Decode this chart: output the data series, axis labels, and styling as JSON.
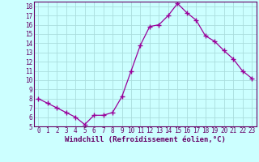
{
  "x": [
    0,
    1,
    2,
    3,
    4,
    5,
    6,
    7,
    8,
    9,
    10,
    11,
    12,
    13,
    14,
    15,
    16,
    17,
    18,
    19,
    20,
    21,
    22,
    23
  ],
  "y": [
    8.0,
    7.5,
    7.0,
    6.5,
    6.0,
    5.2,
    6.2,
    6.2,
    6.5,
    8.2,
    11.0,
    13.8,
    15.8,
    16.0,
    17.0,
    18.3,
    17.3,
    16.5,
    14.8,
    14.2,
    13.2,
    12.3,
    11.0,
    10.2
  ],
  "line_color": "#990099",
  "marker": "+",
  "bg_color": "#ccffff",
  "grid_color": "#aadddd",
  "xlabel": "Windchill (Refroidissement éolien,°C)",
  "ylim": [
    5,
    18.5
  ],
  "xlim": [
    -0.5,
    23.5
  ],
  "yticks": [
    5,
    6,
    7,
    8,
    9,
    10,
    11,
    12,
    13,
    14,
    15,
    16,
    17,
    18
  ],
  "xticks": [
    0,
    1,
    2,
    3,
    4,
    5,
    6,
    7,
    8,
    9,
    10,
    11,
    12,
    13,
    14,
    15,
    16,
    17,
    18,
    19,
    20,
    21,
    22,
    23
  ],
  "xtick_labels": [
    "0",
    "1",
    "2",
    "3",
    "4",
    "5",
    "6",
    "7",
    "8",
    "9",
    "10",
    "11",
    "12",
    "13",
    "14",
    "15",
    "16",
    "17",
    "18",
    "19",
    "20",
    "21",
    "22",
    "23"
  ],
  "ytick_labels": [
    "5",
    "6",
    "7",
    "8",
    "9",
    "10",
    "11",
    "12",
    "13",
    "14",
    "15",
    "16",
    "17",
    "18"
  ],
  "spine_color": "#660066",
  "tick_color": "#660066",
  "label_color": "#660066",
  "axis_bg": "#ccffff",
  "tick_fontsize": 5.5,
  "xlabel_fontsize": 6.5
}
